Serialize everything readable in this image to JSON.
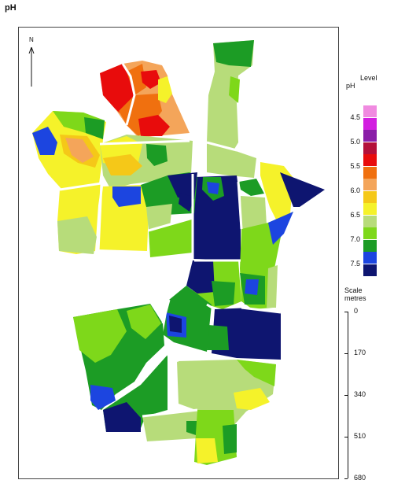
{
  "title": "pH",
  "north_label": "N",
  "legend": {
    "level_label": "Level",
    "ph_label": "pH",
    "colors": [
      "#f08ae0",
      "#d21ee0",
      "#8a1ea8",
      "#b4103a",
      "#e80c0c",
      "#f0700f",
      "#f4a55a",
      "#f5c818",
      "#f5f22a",
      "#b7dc7a",
      "#7ed81a",
      "#1c9c25",
      "#1c45e0",
      "#0e1570"
    ],
    "labels": [
      "4.5",
      "5.0",
      "5.5",
      "6.0",
      "6.5",
      "7.0",
      "7.5"
    ]
  },
  "scale": {
    "title_line1": "Scale",
    "title_line2": "metres",
    "labels": [
      "0",
      "170",
      "340",
      "510",
      "680"
    ]
  }
}
